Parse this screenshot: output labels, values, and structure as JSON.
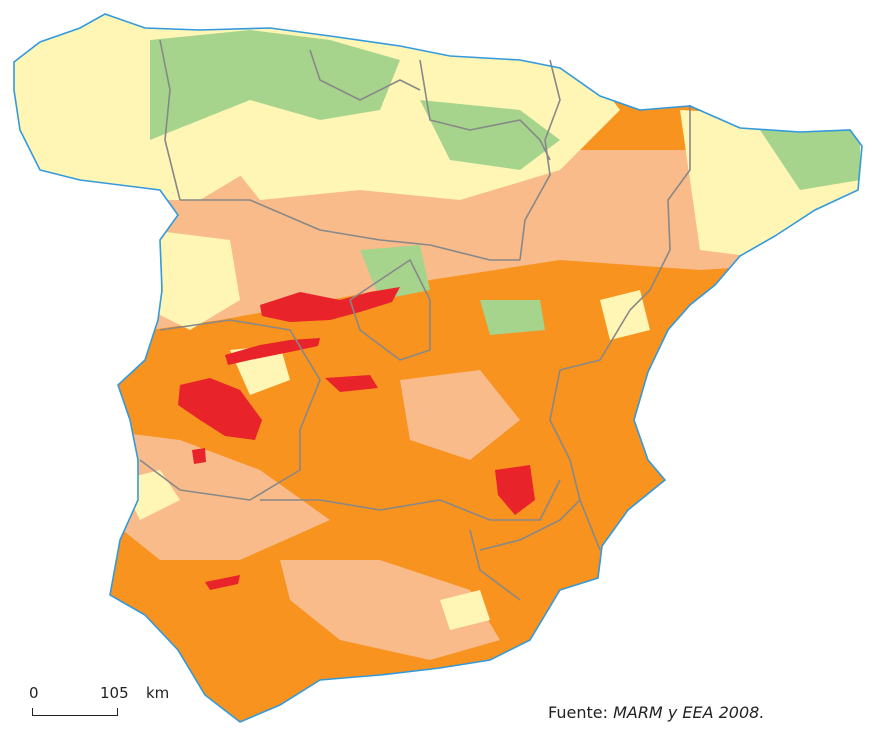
{
  "colors": {
    "sea": "#ffffff",
    "coastline": "#3399dd",
    "border": "#888888",
    "class_1": "#a6d48c",
    "class_2": "#fff6b6",
    "class_3": "#f9bb8a",
    "class_4": "#f7931e",
    "class_5": "#e8232a"
  },
  "scale_bar": {
    "start": "0",
    "end": "105",
    "unit": "km"
  },
  "source": {
    "prefix": "Fuente:",
    "reference": "MARM y EEA 2008."
  }
}
